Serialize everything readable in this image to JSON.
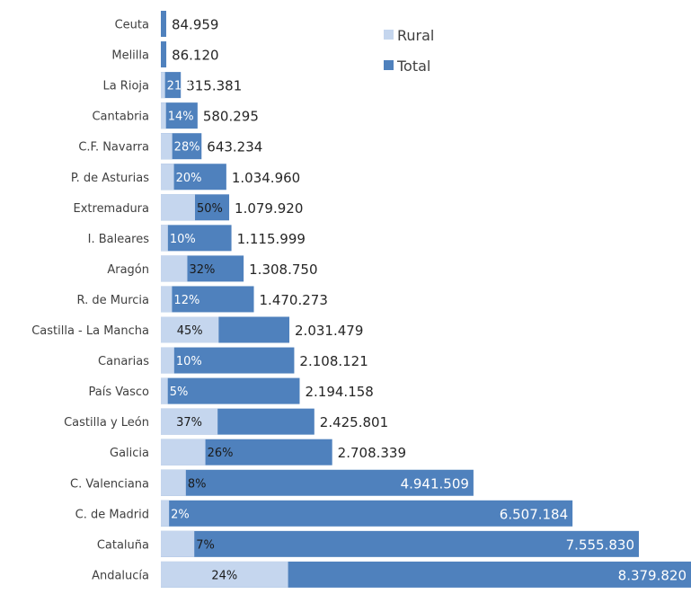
{
  "chart_data": {
    "type": "bar",
    "orientation": "horizontal",
    "stacked": "overlapped",
    "title": "",
    "xlabel": "",
    "ylabel": "",
    "xlim": [
      0,
      8379820
    ],
    "grid": false,
    "legend_position": "top-right",
    "categories": [
      "Ceuta",
      "Melilla",
      "La Rioja",
      "Cantabria",
      "C.F. Navarra",
      "P. de Asturias",
      "Extremadura",
      "I. Baleares",
      "Aragón",
      "R. de Murcia",
      "Castilla - La Mancha",
      "Canarias",
      "País Vasco",
      "Castilla y León",
      "Galicia",
      "C. Valenciana",
      "C. de Madrid",
      "Cataluña",
      "Andalucía"
    ],
    "series": [
      {
        "name": "Rural",
        "color": "#c5d6ee",
        "values": [
          0,
          0,
          66230,
          81241,
          180106,
          206992,
          539960,
          111600,
          418800,
          176433,
          914166,
          210812,
          109708,
          897546,
          704168,
          395321,
          130144,
          528908,
          2011157
        ],
        "percent_labels": [
          "",
          "",
          "21%",
          "14%",
          "28%",
          "20%",
          "50%",
          "10%",
          "32%",
          "12%",
          "45%",
          "10%",
          "5%",
          "37%",
          "26%",
          "8%",
          "2%",
          "7%",
          "24%"
        ]
      },
      {
        "name": "Total",
        "color": "#4f81bd",
        "values": [
          84959,
          86120,
          315381,
          580295,
          643234,
          1034960,
          1079920,
          1115999,
          1308750,
          1470273,
          2031479,
          2108121,
          2194158,
          2425801,
          2708339,
          4941509,
          6507184,
          7555830,
          8379820
        ],
        "value_labels": [
          "84.959",
          "86.120",
          "315.381",
          "580.295",
          "643.234",
          "1.034.960",
          "1.079.920",
          "1.115.999",
          "1.308.750",
          "1.470.273",
          "2.031.479",
          "2.108.121",
          "2.194.158",
          "2.425.801",
          "2.708.339",
          "4.941.509",
          "6.507.184",
          "7.555.830",
          "8.379.820"
        ]
      }
    ]
  }
}
